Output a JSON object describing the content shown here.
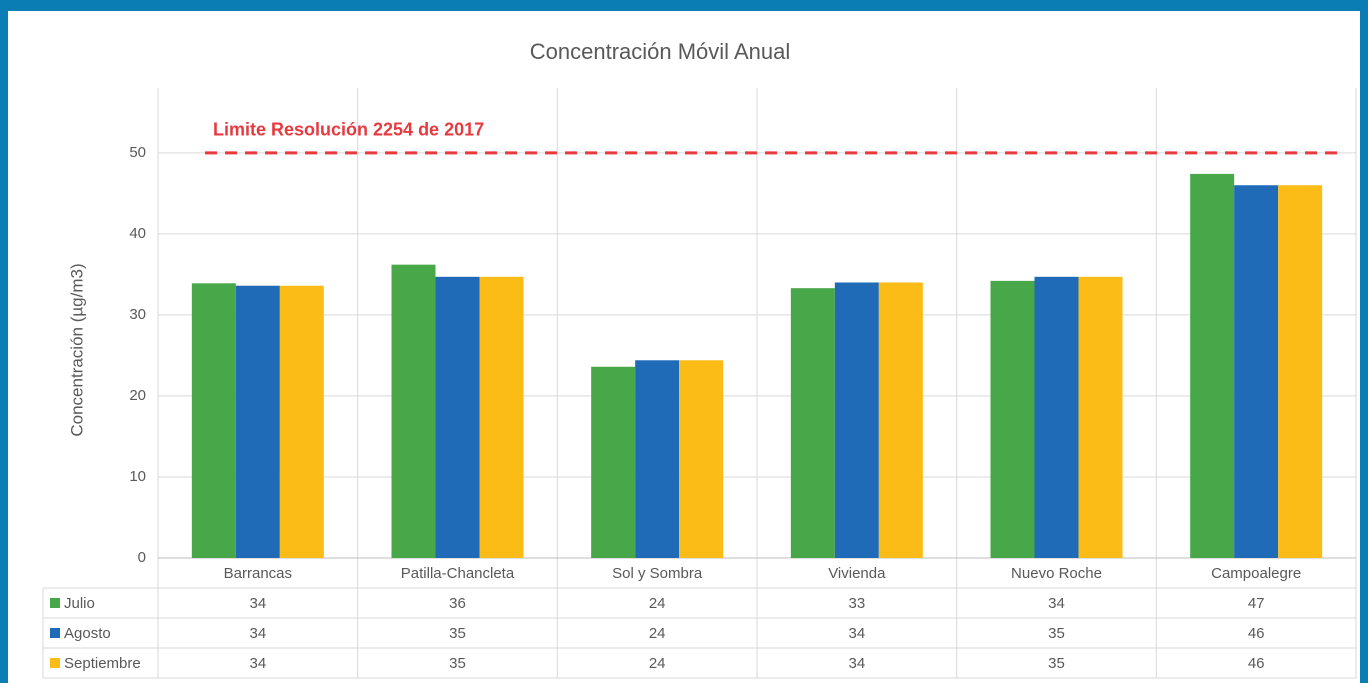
{
  "chart_data": {
    "type": "bar",
    "title": "Concentración  Móvil Anual",
    "y_label": "Concentración (µg/m3)",
    "categories": [
      "Barrancas",
      "Patilla-Chancleta",
      "Sol y Sombra",
      "Vivienda",
      "Nuevo Roche",
      "Campoalegre"
    ],
    "series": [
      {
        "name": "Julio",
        "color": "#48a749",
        "values": [
          33.9,
          36.2,
          23.6,
          33.3,
          34.2,
          47.4
        ],
        "value_labels": [
          "34",
          "36",
          "24",
          "33",
          "34",
          "47"
        ]
      },
      {
        "name": "Agosto",
        "color": "#1f6bb8",
        "values": [
          33.6,
          34.7,
          24.4,
          34.0,
          34.7,
          46.0
        ],
        "value_labels": [
          "34",
          "35",
          "24",
          "34",
          "35",
          "46"
        ]
      },
      {
        "name": "Septiembre",
        "color": "#fbbc17",
        "values": [
          33.6,
          34.7,
          24.4,
          34.0,
          34.7,
          46.0
        ],
        "value_labels": [
          "34",
          "35",
          "24",
          "34",
          "35",
          "46"
        ]
      }
    ],
    "limit": {
      "label": "Limite Resolución 2254 de 2017",
      "value": 50,
      "color": "#e63a3f"
    },
    "ylim": [
      0,
      58
    ],
    "yticks": [
      0,
      10,
      20,
      30,
      40,
      50
    ],
    "grid": true
  }
}
